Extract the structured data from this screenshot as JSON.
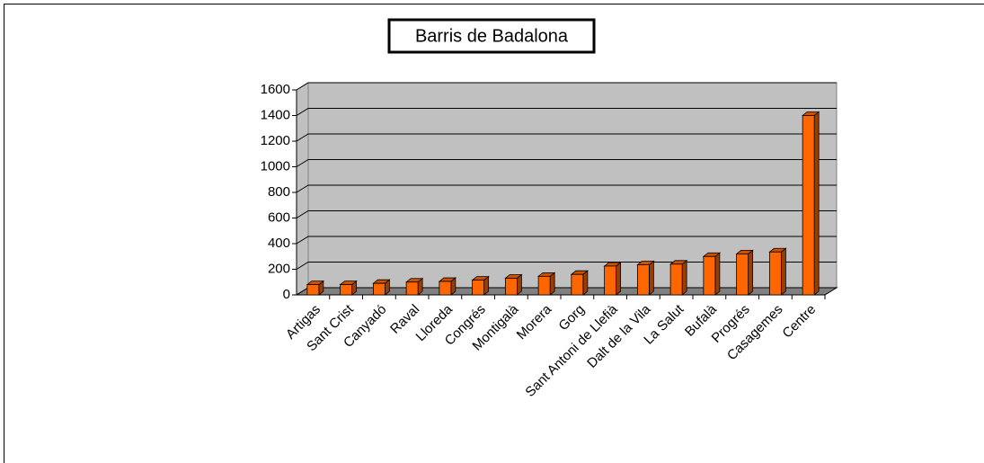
{
  "chart_data": {
    "type": "bar",
    "title": "Barris de Badalona",
    "categories": [
      "Artigas",
      "Sant Crist",
      "Canyadó",
      "Raval",
      "Lloreda",
      "Congrés",
      "Montigalà",
      "Morera",
      "Gorg",
      "Sant Antoni de Llefià",
      "Dalt de la Vila",
      "La Salut",
      "Bufalà",
      "Progrés",
      "Casagemes",
      "Centre"
    ],
    "values": [
      80,
      80,
      90,
      100,
      105,
      115,
      130,
      145,
      160,
      225,
      235,
      240,
      300,
      320,
      335,
      1400
    ],
    "color": "#ff6600",
    "ylim": [
      0,
      1600
    ],
    "yticks": [
      0,
      200,
      400,
      600,
      800,
      1000,
      1200,
      1400,
      1600
    ],
    "grid": true
  }
}
